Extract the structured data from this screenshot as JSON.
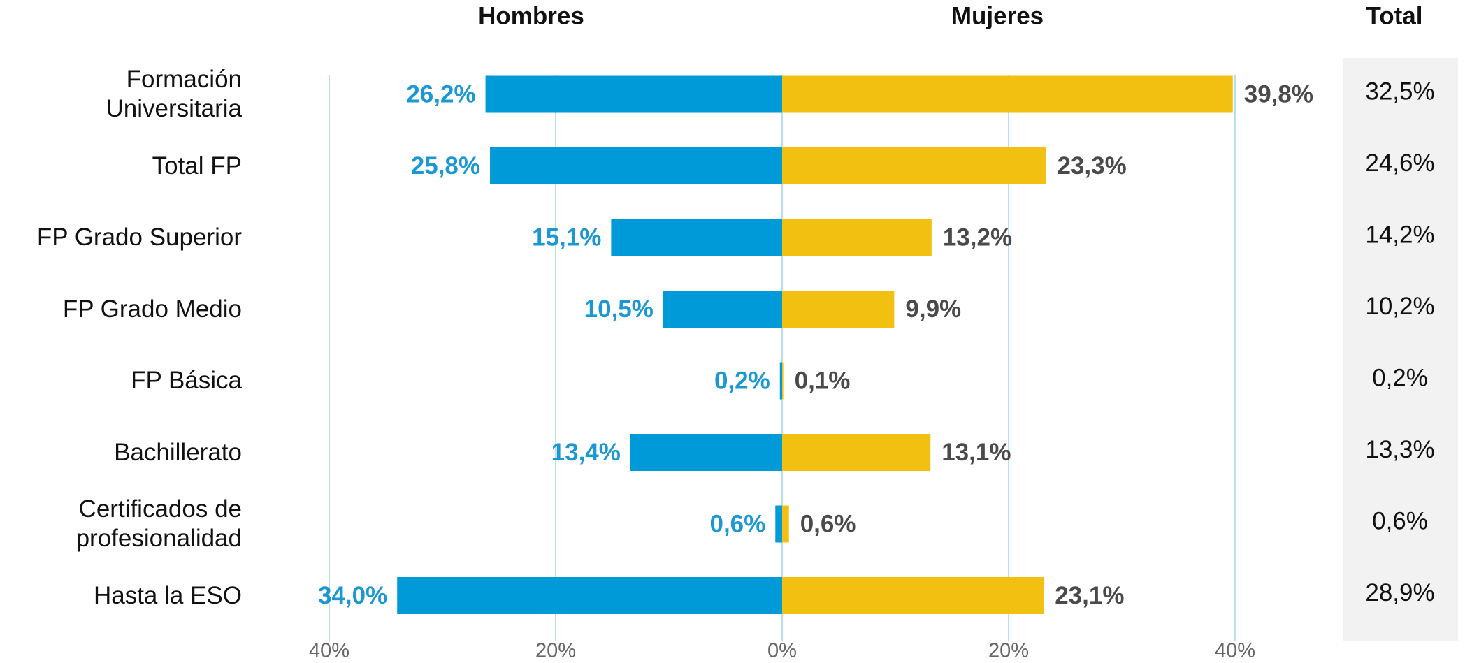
{
  "chart_data": {
    "type": "butterfly",
    "categories": [
      "Formación\nUniversitaria",
      "Total FP",
      "FP Grado Superior",
      "FP Grado Medio",
      "FP Básica",
      "Bachillerato",
      "Certificados de\nprofesionalidad",
      "Hasta la ESO"
    ],
    "series": [
      {
        "name": "Hombres",
        "color": "#009ad8",
        "label_color": "#1b98d4",
        "side": "left",
        "values": [
          26.2,
          25.8,
          15.1,
          10.5,
          0.2,
          13.4,
          0.6,
          34.0
        ],
        "value_labels": [
          "26,2%",
          "25,8%",
          "15,1%",
          "10,5%",
          "0,2%",
          "13,4%",
          "0,6%",
          "34,0%"
        ]
      },
      {
        "name": "Mujeres",
        "color": "#f2c011",
        "label_color": "#4a4a4a",
        "side": "right",
        "values": [
          39.8,
          23.3,
          13.2,
          9.9,
          0.1,
          13.1,
          0.6,
          23.1
        ],
        "value_labels": [
          "39,8%",
          "23,3%",
          "13,2%",
          "9,9%",
          "0,1%",
          "13,1%",
          "0,6%",
          "23,1%"
        ]
      }
    ],
    "totals": {
      "name": "Total",
      "values": [
        32.5,
        24.6,
        14.2,
        10.2,
        0.2,
        13.3,
        0.6,
        28.9
      ],
      "value_labels": [
        "32,5%",
        "24,6%",
        "14,2%",
        "10,2%",
        "0,2%",
        "13,3%",
        "0,6%",
        "28,9%"
      ]
    },
    "xlim": [
      -40,
      40
    ],
    "xticks": [
      {
        "value": -40,
        "label": "40%"
      },
      {
        "value": -20,
        "label": "20%"
      },
      {
        "value": 0,
        "label": "0%"
      },
      {
        "value": 20,
        "label": "20%"
      },
      {
        "value": 40,
        "label": "40%"
      }
    ],
    "grid": true,
    "grid_color": "#9fd5e6"
  }
}
